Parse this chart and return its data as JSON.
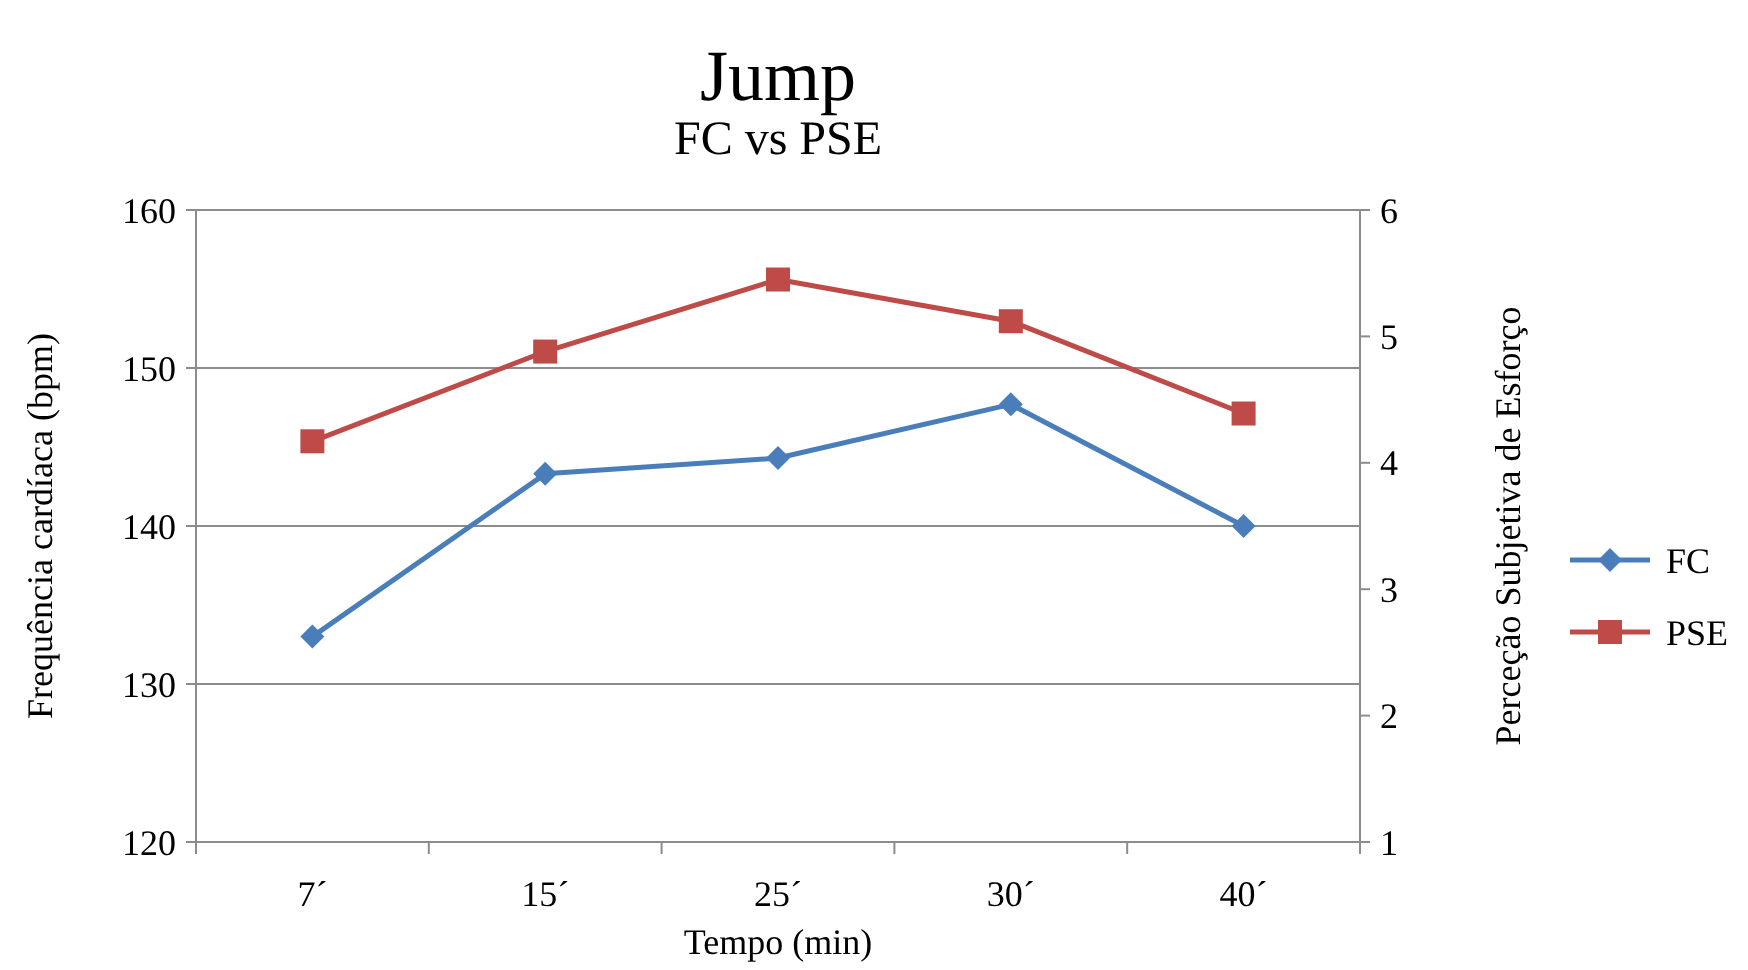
{
  "chart_data": {
    "type": "line",
    "title": "Jump",
    "subtitle": "FC vs PSE",
    "xlabel": "Tempo (min)",
    "ylabel": "Frequência cardíaca (bpm)",
    "y2label": "Perceção Subjetiva de Esforço",
    "categories": [
      "7´",
      "15´",
      "25´",
      "30´",
      "40´"
    ],
    "series": [
      {
        "name": "FC",
        "color": "#4a7ebb",
        "marker": "diamond",
        "values": [
          133,
          143.3,
          144.3,
          147.7,
          140
        ]
      },
      {
        "name": "PSE",
        "color": "#be4b48",
        "marker": "square",
        "axis": "y2",
        "values": [
          4.17,
          4.88,
          5.45,
          5.12,
          4.39
        ]
      }
    ],
    "ylim": [
      120,
      160
    ],
    "yticks": [
      120,
      130,
      140,
      150,
      160
    ],
    "y2lim": [
      1,
      6
    ],
    "y2ticks": [
      1,
      2,
      3,
      4,
      5,
      6
    ],
    "grid": "y",
    "legend": "right"
  }
}
